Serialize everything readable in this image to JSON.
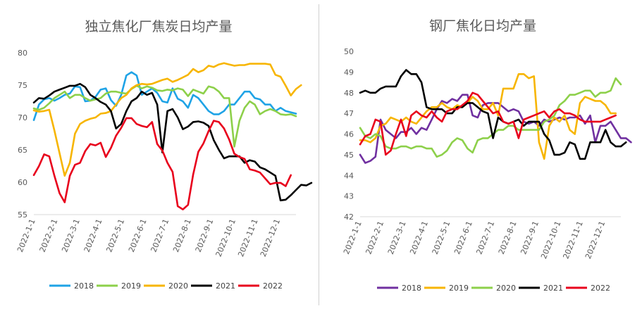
{
  "chart_data": [
    {
      "type": "line",
      "title": "独立焦化厂焦炭日均产量",
      "ylim": [
        55,
        80
      ],
      "yticks": [
        55,
        60,
        65,
        70,
        75,
        80
      ],
      "xticks": [
        "2022-1-1",
        "2022-2-1",
        "2022-3-1",
        "2022-4-1",
        "2022-5-1",
        "2022-6-1",
        "2022-7-1",
        "2022-8-1",
        "2022-9-1",
        "2022-10-1",
        "2022-11-1",
        "2022-12-1"
      ],
      "x_unit": "week",
      "week_count": 52,
      "grid": false,
      "legend_position": "bottom",
      "series": [
        {
          "name": "2018",
          "color": "#1fa3e6",
          "values": [
            69.6,
            72,
            72.8,
            73,
            72.6,
            73,
            73.5,
            73.7,
            74.8,
            74.7,
            72.5,
            72.6,
            73.2,
            74.3,
            74.5,
            72.7,
            71.8,
            73.5,
            76.5,
            77,
            76.5,
            73.5,
            74,
            74.5,
            73.8,
            72.5,
            72.3,
            74.5,
            72.9,
            72.5,
            71.5,
            73.5,
            73,
            72,
            71,
            70.5,
            70.5,
            71,
            72,
            72,
            73,
            74,
            74,
            73,
            72.8,
            72,
            72,
            71,
            71.5,
            71,
            70.8,
            70.6
          ]
        },
        {
          "name": "2019",
          "color": "#8dd04a",
          "values": [
            71.4,
            71.2,
            71.5,
            72.2,
            73,
            73.5,
            74,
            73,
            73.5,
            73.5,
            73,
            72.6,
            72.8,
            73,
            73.7,
            74,
            74,
            73.8,
            73.7,
            74.4,
            74.9,
            74.5,
            74.8,
            74.6,
            74.2,
            74.1,
            74.3,
            74.2,
            74.5,
            74.3,
            73.3,
            74.3,
            74,
            73.7,
            74.8,
            74.6,
            74,
            73,
            73,
            65.5,
            69.5,
            71.5,
            72.5,
            72,
            70.5,
            71,
            71.3,
            71,
            70.5,
            70.4,
            70.5,
            70.2
          ]
        },
        {
          "name": "2020",
          "color": "#f7b500",
          "values": [
            71.1,
            70.9,
            71,
            71.2,
            68,
            64.5,
            61,
            63,
            67.5,
            69,
            69.5,
            69.8,
            70,
            70.6,
            70.7,
            71,
            72,
            73,
            73.5,
            74.5,
            75,
            75.2,
            75.1,
            75.2,
            75.5,
            75.8,
            76,
            75.5,
            75.8,
            76.2,
            76.6,
            77.5,
            77,
            77.3,
            78,
            77.8,
            78.2,
            78.4,
            78.2,
            78,
            78.1,
            78.1,
            78.3,
            78.3,
            78.3,
            78.3,
            78.2,
            76.6,
            76.3,
            74.9,
            73.4,
            74.4,
            75
          ]
        },
        {
          "name": "2021",
          "color": "#000000",
          "values": [
            72.3,
            73,
            72.9,
            73.4,
            74,
            74.3,
            74.6,
            74.9,
            74.9,
            75.2,
            74.7,
            73.5,
            73,
            72.4,
            72,
            71,
            68.3,
            69,
            71,
            72.5,
            73,
            74,
            73.5,
            73.8,
            72,
            64.6,
            71,
            71.3,
            70,
            68.2,
            68.6,
            69.3,
            69.4,
            69.2,
            68.7,
            66.5,
            65,
            63.7,
            64,
            64,
            64,
            63,
            63.4,
            63.2,
            62.3,
            62,
            61.5,
            61,
            57.2,
            57.3,
            58,
            58.8,
            59.6,
            59.5,
            59.9
          ]
        },
        {
          "name": "2022",
          "color": "#e8001c",
          "values": [
            61.1,
            62.5,
            64.3,
            64,
            61,
            58.3,
            56.9,
            61,
            62.7,
            63,
            64.8,
            65.9,
            65.7,
            66.1,
            63.9,
            65.3,
            67.2,
            68.4,
            69.9,
            69.9,
            69,
            68.7,
            68.5,
            69.3,
            65.9,
            64.9,
            63,
            61.6,
            56.3,
            55.8,
            56.5,
            61.2,
            64.7,
            66,
            67.9,
            69.5,
            69.3,
            68.3,
            66.6,
            64.4,
            63.9,
            63.6,
            62,
            61.8,
            61.5,
            60.6,
            59.7,
            59.9,
            59.9,
            59.4,
            61.1
          ]
        }
      ]
    },
    {
      "type": "line",
      "title": "钢厂焦化日均产量",
      "ylim": [
        42,
        50
      ],
      "yticks": [
        42,
        43,
        44,
        45,
        46,
        47,
        48,
        49,
        50
      ],
      "xticks": [
        "2022-1-1",
        "2022-2-1",
        "2022-3-1",
        "2022-4-1",
        "2022-5-1",
        "2022-6-1",
        "2022-7-1",
        "2022-8-1",
        "2022-9-1",
        "2022-10-1",
        "2022-11-1",
        "2022-12-1"
      ],
      "x_unit": "week",
      "week_count": 52,
      "grid": false,
      "legend_position": "bottom",
      "series": [
        {
          "name": "2018",
          "color": "#7030a0",
          "values": [
            45,
            44.6,
            44.7,
            44.9,
            46.7,
            46.2,
            46,
            45.8,
            46.1,
            46.1,
            46.3,
            46,
            46.3,
            46.2,
            46.7,
            47.2,
            47.6,
            47.5,
            47.7,
            47.6,
            47.9,
            47.9,
            46.9,
            46.8,
            47.4,
            47.5,
            47.5,
            47.5,
            47.3,
            47.1,
            47.2,
            47.1,
            46.6,
            46.5,
            46.6,
            46.4,
            46.7,
            46.6,
            46.7,
            46.8,
            46.7,
            46.8,
            46.8,
            46.9,
            46.5,
            46.9,
            45.6,
            46.4,
            46.4,
            46.6,
            46.2,
            45.8,
            45.8,
            45.6
          ]
        },
        {
          "name": "2019",
          "color": "#f7b500",
          "values": [
            45.7,
            45.7,
            45.6,
            45.8,
            46.4,
            46.5,
            46.8,
            46.7,
            46.6,
            46.8,
            46.6,
            46.5,
            46.8,
            47.1,
            47.3,
            47.3,
            47.5,
            47.3,
            47.2,
            47.4,
            47.3,
            47.5,
            47.8,
            47.6,
            47.2,
            47.2,
            47.5,
            46.9,
            48.2,
            48.2,
            48.2,
            48.9,
            48.9,
            48.7,
            48.8,
            45.6,
            44.8,
            46.4,
            46.8,
            46.6,
            46.9,
            46.2,
            46,
            47.5,
            47.8,
            47.7,
            47.6,
            47.6,
            47.4,
            47,
            47
          ]
        },
        {
          "name": "2020",
          "color": "#8dd04a",
          "values": [
            46.3,
            45.9,
            45.8,
            46,
            45.9,
            45.4,
            45.3,
            45.3,
            45.4,
            45.4,
            45.3,
            45.4,
            45.4,
            45.3,
            45.3,
            44.9,
            45,
            45.2,
            45.6,
            45.8,
            45.7,
            45.3,
            45.1,
            45.7,
            45.8,
            45.8,
            46,
            46.2,
            46.2,
            46.4,
            46.4,
            46.2,
            46.2,
            46.2,
            46.2,
            46.2,
            46.6,
            46.7,
            46.9,
            47.4,
            47.6,
            47.9,
            47.9,
            48,
            48.1,
            48.1,
            47.8,
            48,
            48,
            48.1,
            48.7,
            48.4
          ]
        },
        {
          "name": "2021",
          "color": "#000000",
          "values": [
            48,
            48.1,
            48,
            48,
            48.2,
            48.3,
            48.3,
            48.3,
            48.8,
            49.1,
            48.9,
            48.9,
            48.5,
            47.3,
            47.2,
            47.2,
            47.2,
            47,
            47,
            47.3,
            47.3,
            47.5,
            47.5,
            47.3,
            47.1,
            47,
            45.8,
            46.8,
            46.6,
            46.5,
            46.6,
            46.7,
            46.4,
            46.6,
            46.6,
            46.6,
            46,
            45.7,
            45,
            45,
            45.1,
            45.6,
            45.5,
            44.8,
            44.8,
            45.6,
            45.6,
            45.6,
            46.2,
            45.6,
            45.4,
            45.4,
            45.6
          ]
        },
        {
          "name": "2022",
          "color": "#e8001c",
          "values": [
            45.5,
            45.9,
            46,
            46.7,
            46.6,
            45,
            45.2,
            46,
            46.7,
            45.9,
            46.9,
            47.1,
            46.9,
            46.8,
            47.1,
            46.8,
            46.6,
            47.1,
            47.2,
            47.2,
            47.4,
            47.6,
            48,
            47.9,
            47.6,
            47.3,
            47,
            47.1,
            46.6,
            46.5,
            46.6,
            45.8,
            46.7,
            46.8,
            46.9,
            47,
            47.1,
            46.8,
            47.1,
            47.2,
            47,
            47,
            46.9,
            46.7,
            46.6,
            46.6,
            46.6,
            46.6,
            46.7,
            46.8,
            46.9
          ]
        }
      ]
    }
  ]
}
